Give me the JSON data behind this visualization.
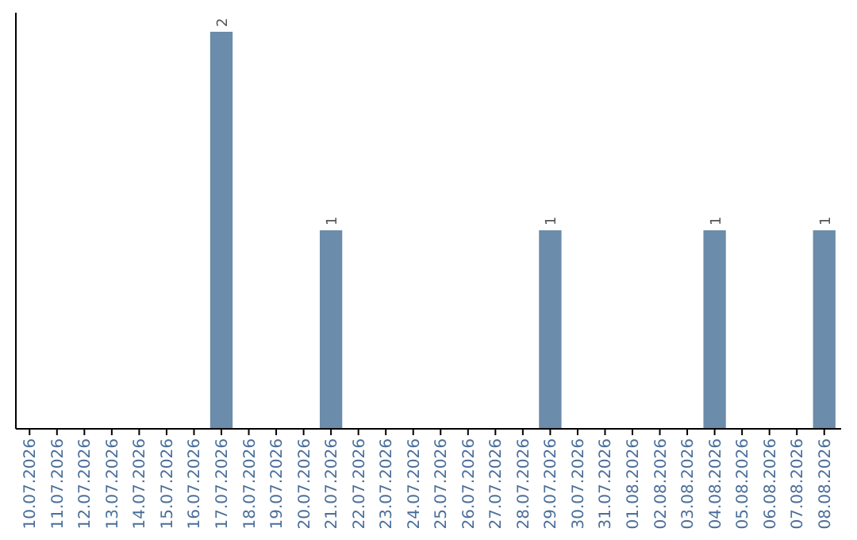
{
  "chart_data": {
    "type": "bar",
    "categories": [
      "10.07.2026",
      "11.07.2026",
      "12.07.2026",
      "13.07.2026",
      "14.07.2026",
      "15.07.2026",
      "16.07.2026",
      "17.07.2026",
      "18.07.2026",
      "19.07.2026",
      "20.07.2026",
      "21.07.2026",
      "22.07.2026",
      "23.07.2026",
      "24.07.2026",
      "25.07.2026",
      "26.07.2026",
      "27.07.2026",
      "28.07.2026",
      "29.07.2026",
      "30.07.2026",
      "31.07.2026",
      "01.08.2026",
      "02.08.2026",
      "03.08.2026",
      "04.08.2026",
      "05.08.2026",
      "06.08.2026",
      "07.08.2026",
      "08.08.2026"
    ],
    "values": [
      0,
      0,
      0,
      0,
      0,
      0,
      0,
      2,
      0,
      0,
      0,
      1,
      0,
      0,
      0,
      0,
      0,
      0,
      0,
      1,
      0,
      0,
      0,
      0,
      0,
      1,
      0,
      0,
      0,
      1
    ],
    "value_labels": [
      null,
      null,
      null,
      null,
      null,
      null,
      null,
      "2",
      null,
      null,
      null,
      "1",
      null,
      null,
      null,
      null,
      null,
      null,
      null,
      "1",
      null,
      null,
      null,
      null,
      null,
      "1",
      null,
      null,
      null,
      "1"
    ],
    "color": "#6b8caa"
  }
}
